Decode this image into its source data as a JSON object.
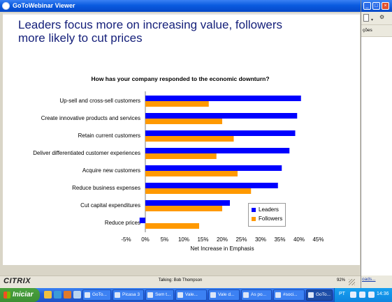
{
  "window": {
    "title": "GoToWebinar Viewer"
  },
  "slide": {
    "headline_line1": "Leaders focus more on increasing value, followers",
    "headline_line2": "more likely to cut prices"
  },
  "chart_data": {
    "type": "bar",
    "orientation": "horizontal",
    "title": "How has your company responded to the economic downturn?",
    "xlabel": "Net Increase in Emphasis",
    "ylabel": "",
    "categories": [
      "Up-sell and cross-sell customers",
      "Create innovative products and services",
      "Retain current customers",
      "Deliver differentiated customer experiences",
      "Acquire new customers",
      "Reduce business expenses",
      "Cut capital expenditures",
      "Reduce prices"
    ],
    "series": [
      {
        "name": "Leaders",
        "color": "#0000ff",
        "values": [
          40.5,
          39.5,
          39,
          37.5,
          35.5,
          34.5,
          22,
          -1.5
        ]
      },
      {
        "name": "Followers",
        "color": "#ff9900",
        "values": [
          16.5,
          20,
          23,
          18.5,
          24,
          27.5,
          20,
          14
        ]
      }
    ],
    "xlim": [
      -5,
      45
    ],
    "xticks": [
      "-5%",
      "0%",
      "5%",
      "10%",
      "15%",
      "20%",
      "25%",
      "30%",
      "35%",
      "40%",
      "45%"
    ],
    "grid": false,
    "legend_position": "bottom-right"
  },
  "footer": {
    "logo": "CITRIX",
    "talking": "Talking: Bob Thompson",
    "zoom": "92%"
  },
  "right_window": {
    "dropdown_label": "ções",
    "status_link": "oads..."
  },
  "taskbar": {
    "start_label": "Iniciar",
    "tasks": [
      "GoTo...",
      "Picasa 3",
      "Sem t...",
      "Vale...",
      "Vale d...",
      "As po...",
      "#soci...",
      "GoTo..."
    ],
    "language": "PT",
    "clock": "14:36"
  }
}
